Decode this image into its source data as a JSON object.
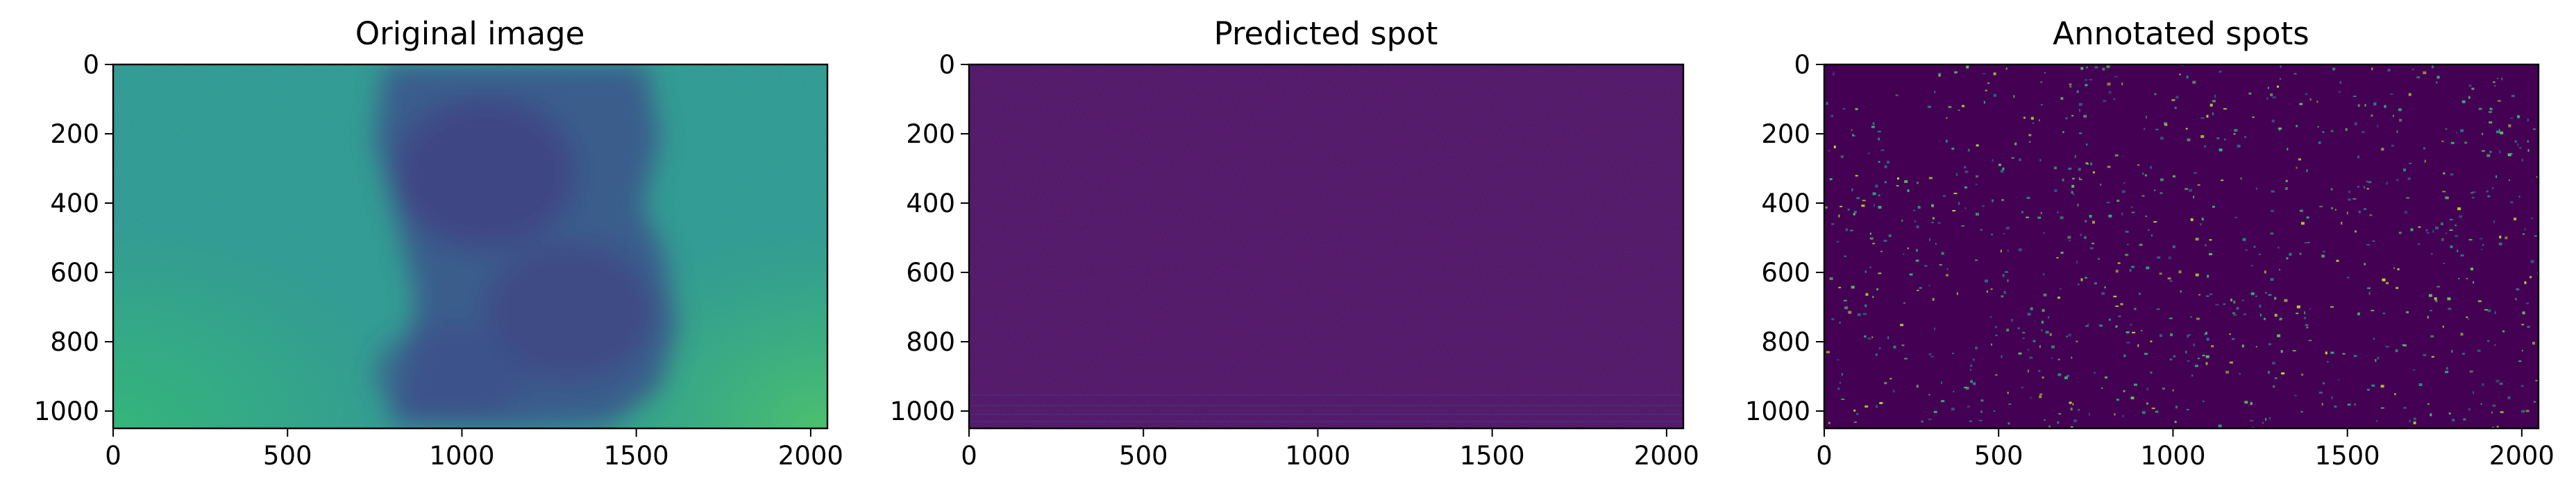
{
  "panels": [
    {
      "title": "Original image",
      "kind": "original",
      "x_ticks": [
        "0",
        "500",
        "1000",
        "1500",
        "2000"
      ],
      "y_ticks": [
        "0",
        "200",
        "400",
        "600",
        "800",
        "1000"
      ]
    },
    {
      "title": "Predicted spot",
      "kind": "predicted",
      "x_ticks": [
        "0",
        "500",
        "1000",
        "1500",
        "2000"
      ],
      "y_ticks": [
        "0",
        "200",
        "400",
        "600",
        "800",
        "1000"
      ]
    },
    {
      "title": "Annotated spots",
      "kind": "annotated",
      "x_ticks": [
        "0",
        "500",
        "1000",
        "1500",
        "2000"
      ],
      "y_ticks": [
        "0",
        "200",
        "400",
        "600",
        "800",
        "1000"
      ]
    }
  ],
  "axis": {
    "x_range": [
      0,
      2048
    ],
    "y_range": [
      0,
      1050
    ],
    "x_tick_values": [
      0,
      500,
      1000,
      1500,
      2000
    ],
    "y_tick_values": [
      0,
      200,
      400,
      600,
      800,
      1000
    ]
  },
  "colors": {
    "viridis_dark": "#440154",
    "viridis_purple": "#46327e",
    "viridis_blue": "#365c8d",
    "viridis_teal": "#21918c",
    "viridis_green": "#35b779",
    "viridis_yellow": "#bddf26"
  }
}
